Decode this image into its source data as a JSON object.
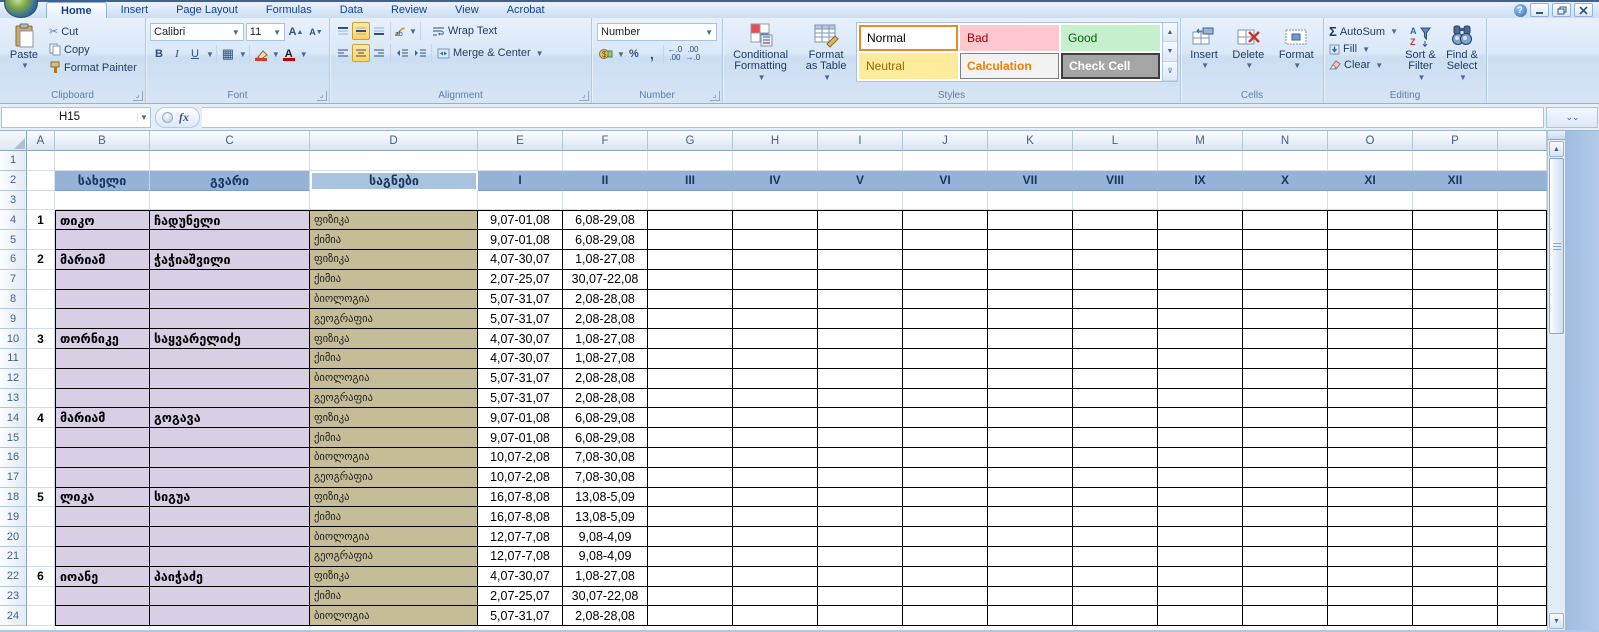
{
  "tabs": [
    "Home",
    "Insert",
    "Page Layout",
    "Formulas",
    "Data",
    "Review",
    "View",
    "Acrobat"
  ],
  "active_tab": "Home",
  "window_buttons": {
    "help": "?",
    "minimize": "minimize",
    "restore": "restore",
    "close": "close"
  },
  "ribbon": {
    "clipboard": {
      "label": "Clipboard",
      "paste": "Paste",
      "cut": "Cut",
      "copy": "Copy",
      "format_painter": "Format Painter"
    },
    "font": {
      "label": "Font",
      "family": "Calibri",
      "size": "11",
      "bold": "B",
      "italic": "I",
      "underline": "U"
    },
    "alignment": {
      "label": "Alignment",
      "wrap_text": "Wrap Text",
      "merge_center": "Merge & Center"
    },
    "number": {
      "label": "Number",
      "format": "Number",
      "percent": "%",
      "comma": ",",
      "inc_decimal": ".00←",
      "dec_decimal": ".00→"
    },
    "styles": {
      "label": "Styles",
      "conditional_line1": "Conditional",
      "conditional_line2": "Formatting",
      "format_table_line1": "Format",
      "format_table_line2": "as Table",
      "gallery": [
        {
          "name": "Normal",
          "bg": "#FFFFFF",
          "fg": "#000000"
        },
        {
          "name": "Bad",
          "bg": "#FFC7CE",
          "fg": "#9C0006"
        },
        {
          "name": "Good",
          "bg": "#C6EFCE",
          "fg": "#006100"
        },
        {
          "name": "Neutral",
          "bg": "#FFEB9C",
          "fg": "#9C6500"
        },
        {
          "name": "Calculation",
          "bg": "#F2F2F2",
          "fg": "#FA7D00"
        },
        {
          "name": "Check Cell",
          "bg": "#A5A5A5",
          "fg": "#FFFFFF"
        }
      ]
    },
    "cells": {
      "label": "Cells",
      "insert": "Insert",
      "delete": "Delete",
      "format": "Format"
    },
    "editing": {
      "label": "Editing",
      "autosum": "AutoSum",
      "fill": "Fill",
      "clear": "Clear",
      "sort_filter_line1": "Sort &",
      "sort_filter_line2": "Filter",
      "find_select_line1": "Find &",
      "find_select_line2": "Select"
    }
  },
  "formula_bar": {
    "name_box": "H15",
    "fx": "fx",
    "formula": ""
  },
  "sheet": {
    "columns": [
      "A",
      "B",
      "C",
      "D",
      "E",
      "F",
      "G",
      "H",
      "I",
      "J",
      "K",
      "L",
      "M",
      "N",
      "O",
      "P"
    ],
    "visible_rows": 24,
    "header_row": 2,
    "table_start_row": 4,
    "headers": {
      "name": "სახელი",
      "surname": "გვარი",
      "subjects": "საგნები"
    },
    "months": [
      "I",
      "II",
      "III",
      "IV",
      "V",
      "VI",
      "VII",
      "VIII",
      "IX",
      "X",
      "XI",
      "XII"
    ],
    "students": [
      {
        "num": "1",
        "first": "თიკო",
        "last": "ჩადუნელი",
        "subjects": [
          {
            "name": "ფიზიკა",
            "p1": "9,07-01,08",
            "p2": "6,08-29,08"
          },
          {
            "name": "ქიმია",
            "p1": "9,07-01,08",
            "p2": "6,08-29,08"
          }
        ]
      },
      {
        "num": "2",
        "first": "მარიამ",
        "last": "ჭაჭიაშვილი",
        "subjects": [
          {
            "name": "ფიზიკა",
            "p1": "4,07-30,07",
            "p2": "1,08-27,08"
          },
          {
            "name": "ქიმია",
            "p1": "2,07-25,07",
            "p2": "30,07-22,08"
          },
          {
            "name": "ბიოლოგია",
            "p1": "5,07-31,07",
            "p2": "2,08-28,08"
          },
          {
            "name": "გეოგრაფია",
            "p1": "5,07-31,07",
            "p2": "2,08-28,08"
          }
        ]
      },
      {
        "num": "3",
        "first": "თორნიკე",
        "last": "საყვარელიძე",
        "subjects": [
          {
            "name": "ფიზიკა",
            "p1": "4,07-30,07",
            "p2": "1,08-27,08"
          },
          {
            "name": "ქიმია",
            "p1": "4,07-30,07",
            "p2": "1,08-27,08"
          },
          {
            "name": "ბიოლოგია",
            "p1": "5,07-31,07",
            "p2": "2,08-28,08"
          },
          {
            "name": "გეოგრაფია",
            "p1": "5,07-31,07",
            "p2": "2,08-28,08"
          }
        ]
      },
      {
        "num": "4",
        "first": "მარიამ",
        "last": "გოგავა",
        "subjects": [
          {
            "name": "ფიზიკა",
            "p1": "9,07-01,08",
            "p2": "6,08-29,08"
          },
          {
            "name": "ქიმია",
            "p1": "9,07-01,08",
            "p2": "6,08-29,08"
          },
          {
            "name": "ბიოლოგია",
            "p1": "10,07-2,08",
            "p2": "7,08-30,08"
          },
          {
            "name": "გეოგრაფია",
            "p1": "10,07-2,08",
            "p2": "7,08-30,08"
          }
        ]
      },
      {
        "num": "5",
        "first": "ლიკა",
        "last": "სიგუა",
        "subjects": [
          {
            "name": "ფიზიკა",
            "p1": "16,07-8,08",
            "p2": "13,08-5,09"
          },
          {
            "name": "ქიმია",
            "p1": "16,07-8,08",
            "p2": "13,08-5,09"
          },
          {
            "name": "ბიოლოგია",
            "p1": "12,07-7,08",
            "p2": "9,08-4,09"
          },
          {
            "name": "გეოგრაფია",
            "p1": "12,07-7,08",
            "p2": "9,08-4,09"
          }
        ]
      },
      {
        "num": "6",
        "first": "იოანე",
        "last": "პაიჭაძე",
        "subjects": [
          {
            "name": "ფიზიკა",
            "p1": "4,07-30,07",
            "p2": "1,08-27,08"
          },
          {
            "name": "ქიმია",
            "p1": "2,07-25,07",
            "p2": "30,07-22,08"
          },
          {
            "name": "ბიოლოგია",
            "p1": "5,07-31,07",
            "p2": "2,08-28,08"
          }
        ]
      }
    ]
  },
  "colors": {
    "header_fill": "#95B3D7",
    "name_fill": "#D8CFE4",
    "subject_fill": "#C4BD97",
    "header_text": "#17375E"
  }
}
